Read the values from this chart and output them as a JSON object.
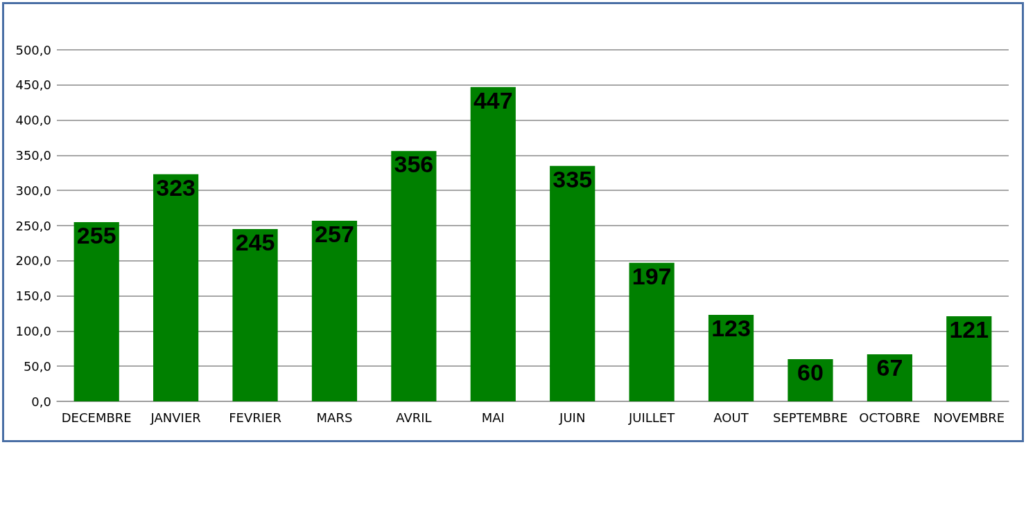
{
  "chart_data": {
    "type": "bar",
    "categories": [
      "DECEMBRE",
      "JANVIER",
      "FEVRIER",
      "MARS",
      "AVRIL",
      "MAI",
      "JUIN",
      "JUILLET",
      "AOUT",
      "SEPTEMBRE",
      "OCTOBRE",
      "NOVEMBRE"
    ],
    "values": [
      255,
      323,
      245,
      257,
      356,
      447,
      335,
      197,
      123,
      60,
      67,
      121
    ],
    "color": "#008000",
    "ylim": [
      0,
      500
    ],
    "yticks": [
      {
        "value": 0,
        "label": "0,0"
      },
      {
        "value": 50,
        "label": "50,0"
      },
      {
        "value": 100,
        "label": "100,0"
      },
      {
        "value": 150,
        "label": "150,0"
      },
      {
        "value": 200,
        "label": "200,0"
      },
      {
        "value": 250,
        "label": "250,0"
      },
      {
        "value": 300,
        "label": "300,0"
      },
      {
        "value": 350,
        "label": "350,0"
      },
      {
        "value": 400,
        "label": "400,0"
      },
      {
        "value": 450,
        "label": "450,0"
      },
      {
        "value": 500,
        "label": "500,0"
      }
    ],
    "grid": "y",
    "data_labels": true
  }
}
